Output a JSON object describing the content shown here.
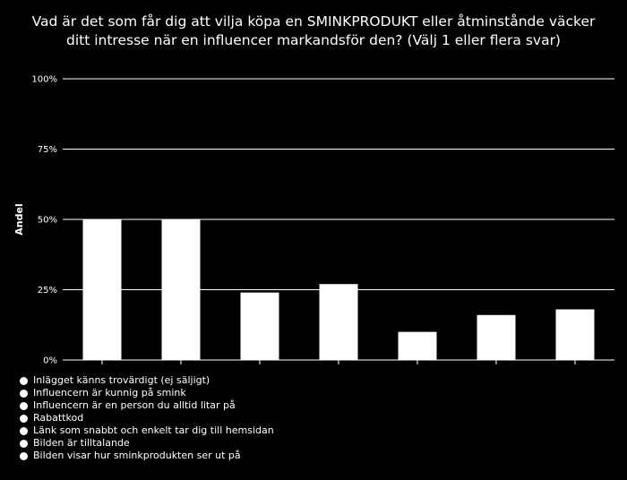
{
  "chart_data": {
    "type": "bar",
    "title_lines": [
      "Vad är det som får dig att vilja köpa en SMINKPRODUKT eller åtminstånde väcker",
      "ditt intresse när en influencer markandsför den? (Välj 1 eller flera svar)"
    ],
    "ylabel": "Andel",
    "ylim": [
      0,
      100
    ],
    "y_ticks": [
      "0%",
      "25%",
      "50%",
      "75%",
      "100%"
    ],
    "y_tick_values": [
      0,
      25,
      50,
      75,
      100
    ],
    "grid": true,
    "legend_position": "bottom-left",
    "categories": [
      "Inlägget känns trovärdigt (ej säljigt)",
      "Influencern är kunnig på smink",
      "Influencern är en person du alltid litar på",
      "Rabattkod",
      "Länk som snabbt och enkelt tar dig till hemsidan",
      "Bilden är tilltalande",
      "Bilden visar hur sminkprodukten ser ut på"
    ],
    "values": [
      50,
      50,
      24,
      27,
      10,
      16,
      18
    ],
    "colors": {
      "background": "#000000",
      "bars": "#ffffff",
      "grid": "#ffffff",
      "text": "#ffffff"
    }
  }
}
